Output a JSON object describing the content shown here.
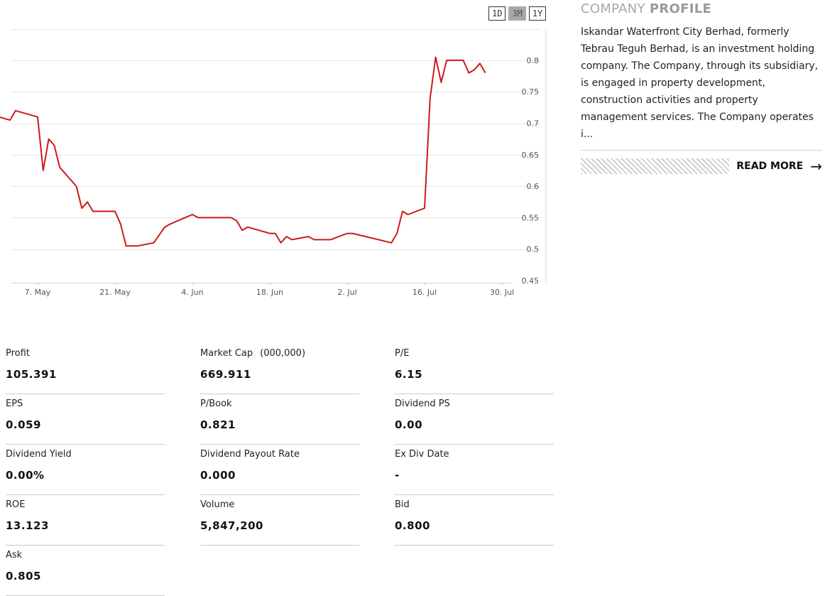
{
  "range_buttons": [
    {
      "label": "1D",
      "active": false
    },
    {
      "label": "3M",
      "active": true
    },
    {
      "label": "1Y",
      "active": false
    }
  ],
  "chart_data": {
    "type": "line",
    "title": "",
    "xlabel": "",
    "ylabel": "",
    "ylim": [
      0.45,
      0.8
    ],
    "yticks": [
      0.45,
      0.5,
      0.55,
      0.6,
      0.65,
      0.7,
      0.75,
      0.8
    ],
    "ytick_labels": [
      "0.45",
      "0.5",
      "0.55",
      "0.6",
      "0.65",
      "0.7",
      "0.75",
      "0.8"
    ],
    "xticks": [
      "7. May",
      "21. May",
      "4. Jun",
      "18. Jun",
      "2. Jul",
      "16. Jul",
      "30. Jul"
    ],
    "grid": true,
    "line_color": "#cc1a1a",
    "series": [
      {
        "values": [
          [
            "2018-04-30",
            0.71
          ],
          [
            "2018-05-02",
            0.705
          ],
          [
            "2018-05-03",
            0.72
          ],
          [
            "2018-05-07",
            0.71
          ],
          [
            "2018-05-08",
            0.625
          ],
          [
            "2018-05-09",
            0.675
          ],
          [
            "2018-05-10",
            0.665
          ],
          [
            "2018-05-11",
            0.63
          ],
          [
            "2018-05-14",
            0.6
          ],
          [
            "2018-05-15",
            0.565
          ],
          [
            "2018-05-16",
            0.575
          ],
          [
            "2018-05-17",
            0.56
          ],
          [
            "2018-05-18",
            0.56
          ],
          [
            "2018-05-21",
            0.56
          ],
          [
            "2018-05-22",
            0.54
          ],
          [
            "2018-05-23",
            0.505
          ],
          [
            "2018-05-24",
            0.505
          ],
          [
            "2018-05-25",
            0.505
          ],
          [
            "2018-05-28",
            0.51
          ],
          [
            "2018-05-30",
            0.535
          ],
          [
            "2018-05-31",
            0.54
          ],
          [
            "2018-06-04",
            0.555
          ],
          [
            "2018-06-05",
            0.55
          ],
          [
            "2018-06-06",
            0.55
          ],
          [
            "2018-06-07",
            0.55
          ],
          [
            "2018-06-08",
            0.55
          ],
          [
            "2018-06-11",
            0.55
          ],
          [
            "2018-06-12",
            0.545
          ],
          [
            "2018-06-13",
            0.53
          ],
          [
            "2018-06-14",
            0.535
          ],
          [
            "2018-06-18",
            0.525
          ],
          [
            "2018-06-19",
            0.525
          ],
          [
            "2018-06-20",
            0.51
          ],
          [
            "2018-06-21",
            0.52
          ],
          [
            "2018-06-22",
            0.515
          ],
          [
            "2018-06-25",
            0.52
          ],
          [
            "2018-06-26",
            0.515
          ],
          [
            "2018-06-27",
            0.515
          ],
          [
            "2018-06-28",
            0.515
          ],
          [
            "2018-06-29",
            0.515
          ],
          [
            "2018-07-02",
            0.525
          ],
          [
            "2018-07-03",
            0.525
          ],
          [
            "2018-07-10",
            0.51
          ],
          [
            "2018-07-11",
            0.525
          ],
          [
            "2018-07-12",
            0.56
          ],
          [
            "2018-07-13",
            0.555
          ],
          [
            "2018-07-16",
            0.565
          ],
          [
            "2018-07-17",
            0.74
          ],
          [
            "2018-07-18",
            0.805
          ],
          [
            "2018-07-19",
            0.765
          ],
          [
            "2018-07-20",
            0.8
          ],
          [
            "2018-07-23",
            0.8
          ],
          [
            "2018-07-24",
            0.78
          ],
          [
            "2018-07-25",
            0.785
          ],
          [
            "2018-07-26",
            0.795
          ],
          [
            "2018-07-27",
            0.78
          ]
        ]
      }
    ]
  },
  "profile": {
    "title_light": "COMPANY ",
    "title_bold": "PROFILE",
    "text": "Iskandar Waterfront City Berhad, formerly Tebrau Teguh Berhad, is an investment holding company. The Company, through its subsidiary, is engaged in property development, construction activities and property management services. The Company operates i...",
    "read_more": "READ MORE"
  },
  "stats": [
    {
      "label": "Profit",
      "value": "105.391"
    },
    {
      "label": "Market Cap",
      "unit": "(000,000)",
      "value": "669.911"
    },
    {
      "label": "P/E",
      "value": "6.15"
    },
    {
      "label": "EPS",
      "value": "0.059"
    },
    {
      "label": "P/Book",
      "value": "0.821"
    },
    {
      "label": "Dividend PS",
      "value": "0.00"
    },
    {
      "label": "Dividend Yield",
      "value": "0.00%"
    },
    {
      "label": "Dividend Payout Rate",
      "value": "0.000"
    },
    {
      "label": "Ex Div Date",
      "value": "-"
    },
    {
      "label": "ROE",
      "value": "13.123"
    },
    {
      "label": "Volume",
      "value": "5,847,200"
    },
    {
      "label": "Bid",
      "value": "0.800"
    },
    {
      "label": "Ask",
      "value": "0.805"
    }
  ]
}
